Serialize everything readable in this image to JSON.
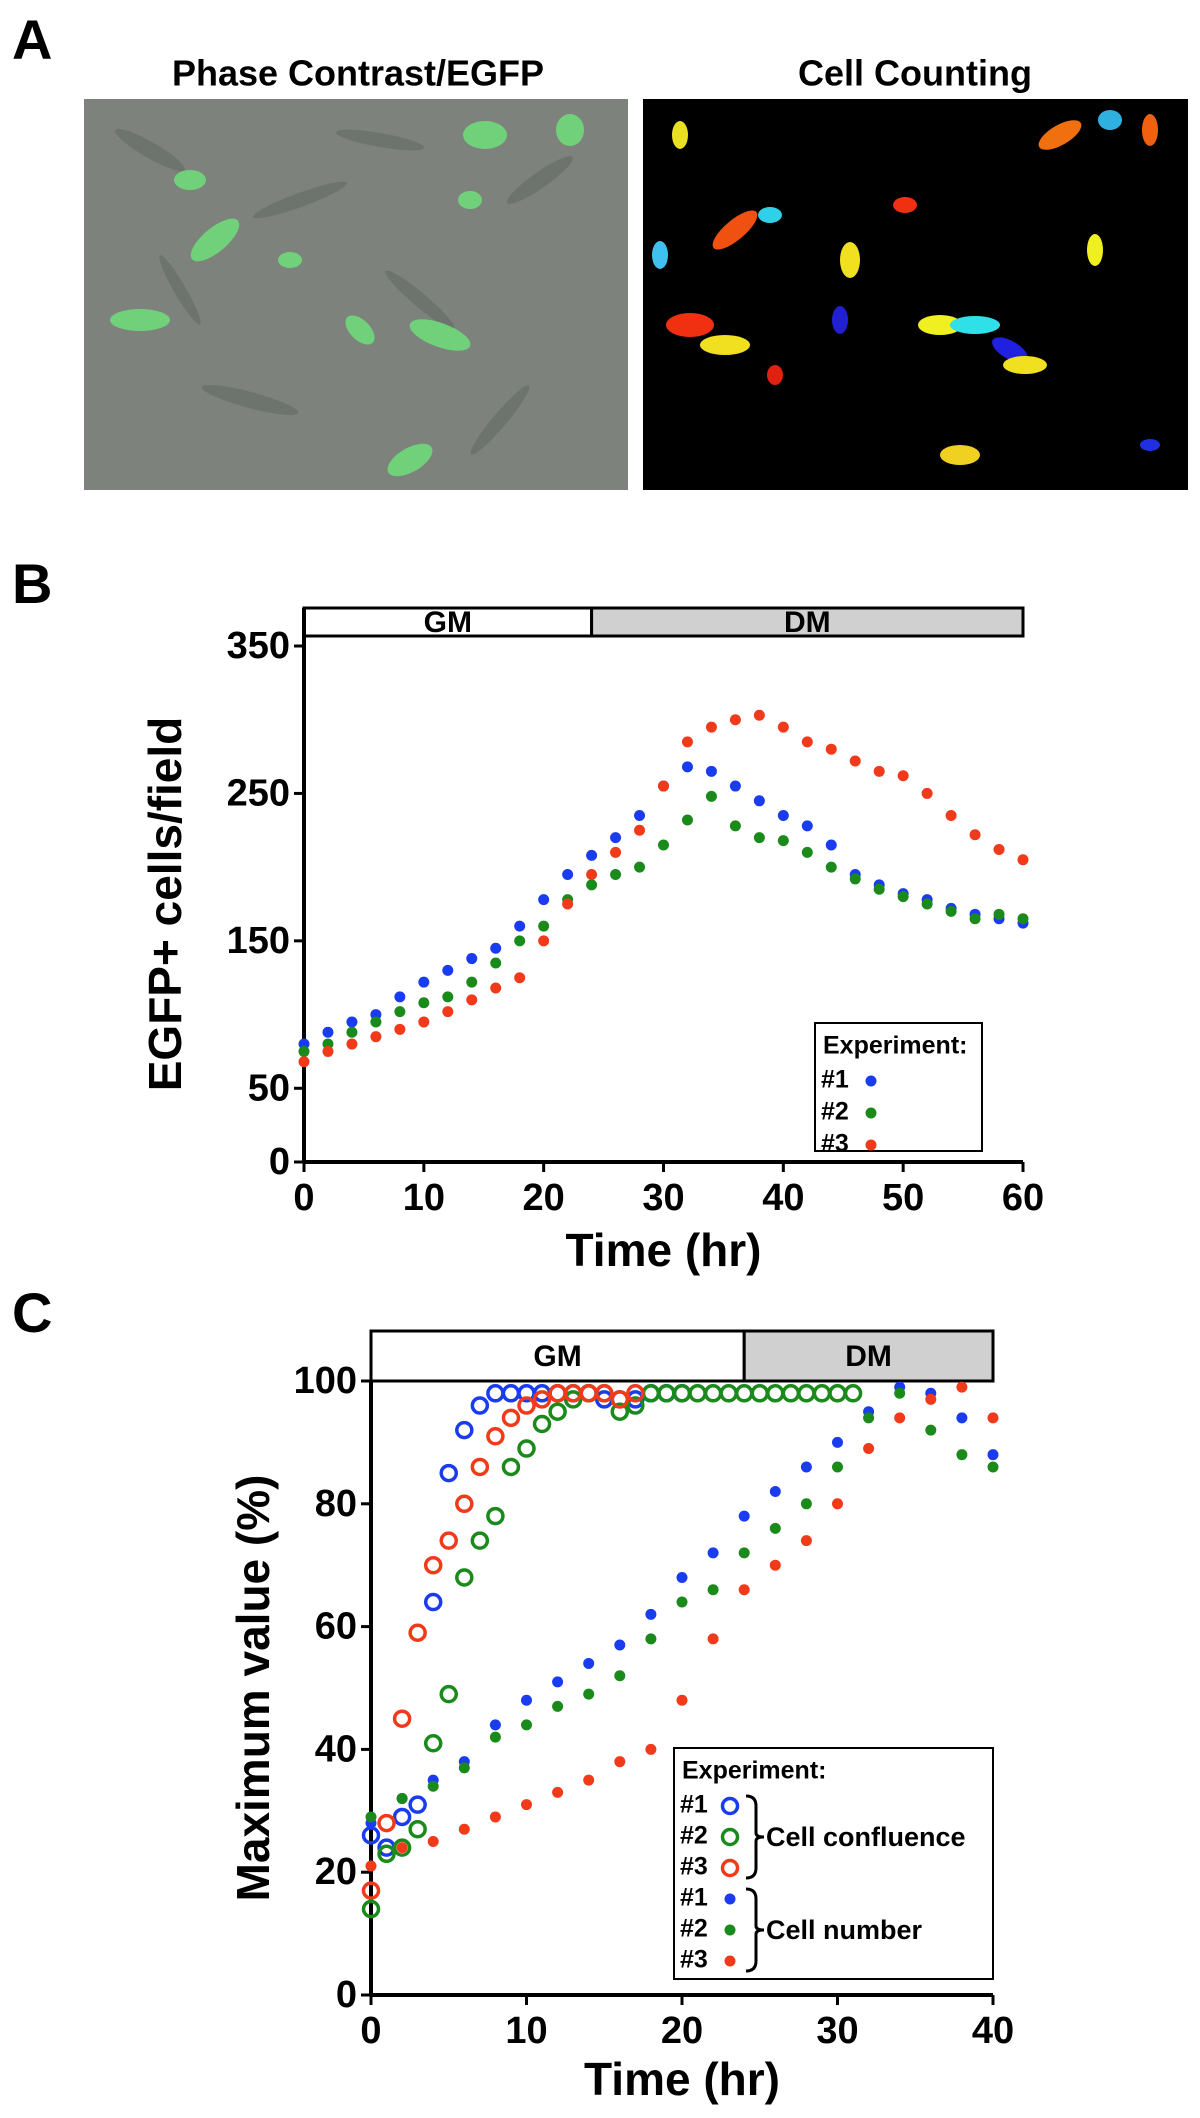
{
  "panel_a": {
    "label": "A",
    "images": [
      {
        "title": "Phase Contrast/EGFP"
      },
      {
        "title": "Cell Counting"
      }
    ]
  },
  "chart_data": [
    {
      "type": "scatter",
      "panel": "B",
      "x_label": "Time (hr)",
      "y_label": "EGFP+ cells/field",
      "xlim": [
        0,
        60
      ],
      "xticks": [
        0,
        10,
        20,
        30,
        40,
        50,
        60
      ],
      "ylim": [
        0,
        350
      ],
      "yticks": [
        0,
        50,
        150,
        250,
        350
      ],
      "phases": [
        {
          "label": "GM",
          "start": 0,
          "end": 24,
          "color": "#ffffff"
        },
        {
          "label": "DM",
          "start": 24,
          "end": 60,
          "color": "#d0d0d0"
        }
      ],
      "legend_title": "Experiment:",
      "legend": "lower right",
      "series": [
        {
          "name": "#1",
          "color": "#1a3cf0",
          "marker": "filled",
          "x": [
            0,
            2,
            4,
            6,
            8,
            10,
            12,
            14,
            16,
            18,
            20,
            22,
            24,
            26,
            28,
            30,
            32,
            34,
            36,
            38,
            40,
            42,
            44,
            46,
            48,
            50,
            52,
            54,
            56,
            58,
            60
          ],
          "values": [
            80,
            88,
            95,
            100,
            112,
            122,
            130,
            138,
            145,
            160,
            178,
            195,
            208,
            220,
            235,
            255,
            268,
            265,
            255,
            245,
            235,
            228,
            215,
            195,
            188,
            182,
            178,
            172,
            168,
            165,
            162
          ]
        },
        {
          "name": "#2",
          "color": "#1a8a1a",
          "marker": "filled",
          "x": [
            0,
            2,
            4,
            6,
            8,
            10,
            12,
            14,
            16,
            18,
            20,
            22,
            24,
            26,
            28,
            30,
            32,
            34,
            36,
            38,
            40,
            42,
            44,
            46,
            48,
            50,
            52,
            54,
            56,
            58,
            60
          ],
          "values": [
            75,
            80,
            88,
            95,
            102,
            108,
            112,
            122,
            135,
            150,
            160,
            178,
            188,
            195,
            200,
            215,
            232,
            248,
            228,
            220,
            218,
            210,
            200,
            192,
            185,
            180,
            175,
            170,
            165,
            168,
            165
          ]
        },
        {
          "name": "#3",
          "color": "#f03a1a",
          "marker": "filled",
          "x": [
            0,
            2,
            4,
            6,
            8,
            10,
            12,
            14,
            16,
            18,
            20,
            22,
            24,
            26,
            28,
            30,
            32,
            34,
            36,
            38,
            40,
            42,
            44,
            46,
            48,
            50,
            52,
            54,
            56,
            58,
            60
          ],
          "values": [
            68,
            75,
            80,
            85,
            90,
            95,
            102,
            110,
            118,
            125,
            150,
            175,
            195,
            210,
            225,
            255,
            285,
            295,
            300,
            303,
            295,
            285,
            280,
            272,
            265,
            262,
            250,
            235,
            222,
            212,
            205
          ]
        }
      ]
    },
    {
      "type": "scatter",
      "panel": "C",
      "x_label": "Time (hr)",
      "y_label": "Maximum value (%)",
      "xlim": [
        0,
        40
      ],
      "xticks": [
        0,
        10,
        20,
        30,
        40
      ],
      "ylim": [
        0,
        100
      ],
      "yticks": [
        0,
        20,
        40,
        60,
        80,
        100
      ],
      "phases": [
        {
          "label": "GM",
          "start": 0,
          "end": 24,
          "color": "#ffffff"
        },
        {
          "label": "DM",
          "start": 24,
          "end": 40,
          "color": "#d0d0d0"
        }
      ],
      "legend_title": "Experiment:",
      "legend": "lower right",
      "group_labels": [
        "Cell confluence",
        "Cell number"
      ],
      "series": [
        {
          "name": "#1",
          "color": "#1a3cf0",
          "marker": "open",
          "x": [
            0,
            1,
            2,
            3,
            4,
            5,
            6,
            7,
            8,
            9,
            10,
            11,
            12,
            13,
            14,
            15,
            16,
            17,
            18,
            19,
            20
          ],
          "values": [
            26,
            24,
            29,
            31,
            64,
            85,
            92,
            96,
            98,
            98,
            98,
            98,
            98,
            98,
            98,
            97,
            97,
            97,
            98,
            98,
            98
          ]
        },
        {
          "name": "#2",
          "color": "#1a8a1a",
          "marker": "open",
          "x": [
            0,
            1,
            2,
            3,
            4,
            5,
            6,
            7,
            8,
            9,
            10,
            11,
            12,
            13,
            14,
            15,
            16,
            17,
            18,
            19,
            20,
            21,
            22,
            23,
            24,
            25,
            26,
            27,
            28,
            29,
            30,
            31
          ],
          "values": [
            14,
            23,
            24,
            27,
            41,
            49,
            68,
            74,
            78,
            86,
            89,
            93,
            95,
            97,
            98,
            98,
            95,
            96,
            98,
            98,
            98,
            98,
            98,
            98,
            98,
            98,
            98,
            98,
            98,
            98,
            98,
            98
          ]
        },
        {
          "name": "#3",
          "color": "#f03a1a",
          "marker": "open",
          "x": [
            0,
            1,
            2,
            3,
            4,
            5,
            6,
            7,
            8,
            9,
            10,
            11,
            12,
            13,
            14,
            15,
            16,
            17
          ],
          "values": [
            17,
            28,
            45,
            59,
            70,
            74,
            80,
            86,
            91,
            94,
            96,
            97,
            98,
            98,
            98,
            98,
            97,
            98
          ]
        },
        {
          "name": "#1",
          "color": "#1a3cf0",
          "marker": "filled",
          "x": [
            0,
            2,
            4,
            6,
            8,
            10,
            12,
            14,
            16,
            18,
            20,
            22,
            24,
            26,
            28,
            30,
            32,
            34,
            36,
            38,
            40
          ],
          "values": [
            28,
            32,
            35,
            38,
            44,
            48,
            51,
            54,
            57,
            62,
            68,
            72,
            78,
            82,
            86,
            90,
            95,
            99,
            98,
            94,
            88
          ]
        },
        {
          "name": "#2",
          "color": "#1a8a1a",
          "marker": "filled",
          "x": [
            0,
            2,
            4,
            6,
            8,
            10,
            12,
            14,
            16,
            18,
            20,
            22,
            24,
            26,
            28,
            30,
            32,
            34,
            36,
            38,
            40
          ],
          "values": [
            29,
            32,
            34,
            37,
            42,
            44,
            47,
            49,
            52,
            58,
            64,
            66,
            72,
            76,
            80,
            86,
            94,
            98,
            92,
            88,
            86
          ]
        },
        {
          "name": "#3",
          "color": "#f03a1a",
          "marker": "filled",
          "x": [
            0,
            2,
            4,
            6,
            8,
            10,
            12,
            14,
            16,
            18,
            20,
            22,
            24,
            26,
            28,
            30,
            32,
            34,
            36,
            38,
            40
          ],
          "values": [
            21,
            24,
            25,
            27,
            29,
            31,
            33,
            35,
            38,
            40,
            48,
            58,
            66,
            70,
            74,
            80,
            89,
            94,
            97,
            99,
            94
          ]
        }
      ]
    }
  ]
}
